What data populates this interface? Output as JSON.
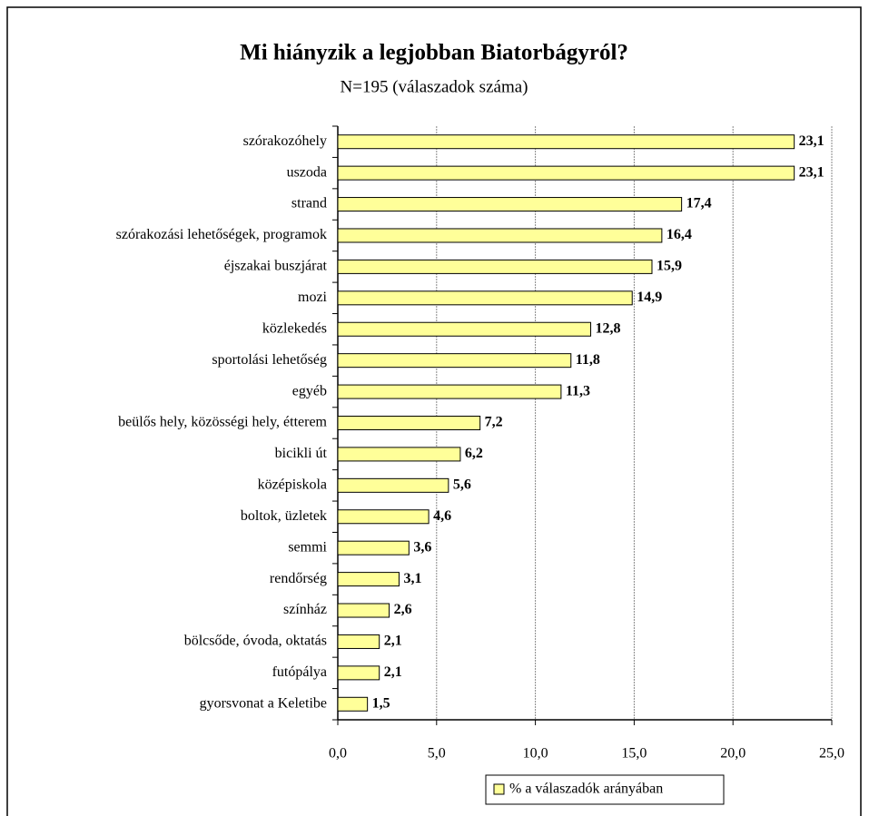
{
  "chart_data": {
    "type": "bar",
    "orientation": "horizontal",
    "title": "Mi hiányzik a legjobban Biatorbágyról?",
    "subtitle": "N=195 (válaszadok száma)",
    "categories": [
      "szórakozóhely",
      "uszoda",
      "strand",
      "szórakozási lehetőségek, programok",
      "éjszakai buszjárat",
      "mozi",
      "közlekedés",
      "sportolási lehetőség",
      "egyéb",
      "beülős hely, közösségi hely, étterem",
      "bicikli út",
      "középiskola",
      "boltok, üzletek",
      "semmi",
      "rendőrség",
      "színház",
      "bölcsőde, óvoda, oktatás",
      "futópálya",
      "gyorsvonat a Keletibe"
    ],
    "series": [
      {
        "name": "% a válaszadók arányában",
        "color": "#ffff99",
        "values": [
          23.1,
          23.1,
          17.4,
          16.4,
          15.9,
          14.9,
          12.8,
          11.8,
          11.3,
          7.2,
          6.2,
          5.6,
          4.6,
          3.6,
          3.1,
          2.6,
          2.1,
          2.1,
          1.5
        ],
        "value_labels": [
          "23,1",
          "23,1",
          "17,4",
          "16,4",
          "15,9",
          "14,9",
          "12,8",
          "11,8",
          "11,3",
          "7,2",
          "6,2",
          "5,6",
          "4,6",
          "3,6",
          "3,1",
          "2,6",
          "2,1",
          "2,1",
          "1,5"
        ]
      }
    ],
    "xlim": [
      0,
      25
    ],
    "xticks": [
      {
        "value": 0,
        "label": "0,0"
      },
      {
        "value": 5,
        "label": "5,0"
      },
      {
        "value": 10,
        "label": "10,0"
      },
      {
        "value": 15,
        "label": "15,0"
      },
      {
        "value": 20,
        "label": "20,0"
      },
      {
        "value": 25,
        "label": "25,0"
      }
    ],
    "grid": true,
    "legend": "bottom"
  }
}
